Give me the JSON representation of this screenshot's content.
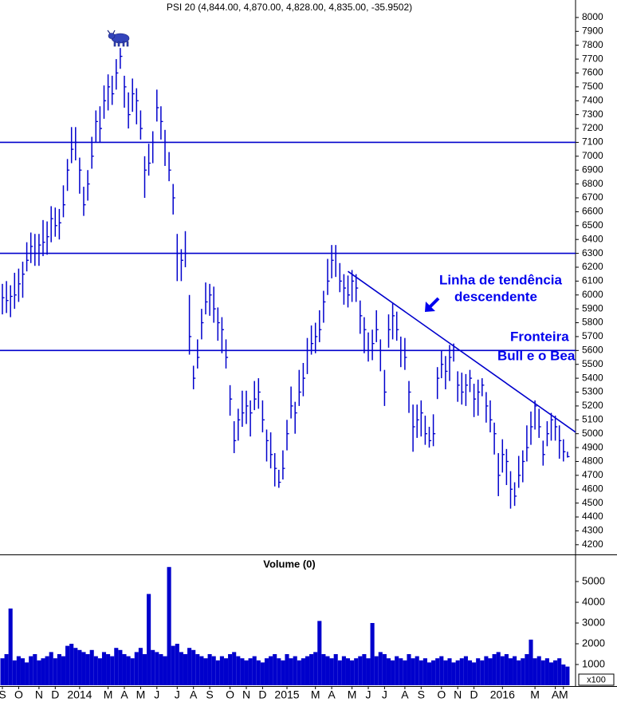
{
  "chart_data": [
    {
      "type": "hlc",
      "title": "PSI 20 (4,844.00, 4,870.00, 4,828.00, 4,835.00, -35.9502)",
      "color": "#0000cc",
      "ylim": [
        4130,
        8126
      ],
      "yticks": [
        4200,
        4300,
        4400,
        4500,
        4600,
        4700,
        4800,
        4900,
        5000,
        5100,
        5200,
        5300,
        5400,
        5500,
        5600,
        5700,
        5800,
        5900,
        6000,
        6100,
        6200,
        6300,
        6400,
        6500,
        6600,
        6700,
        6800,
        6900,
        7000,
        7100,
        7200,
        7300,
        7400,
        7500,
        7600,
        7700,
        7800,
        7900,
        8000
      ],
      "high": [
        6080,
        6100,
        6070,
        6160,
        6190,
        6240,
        6380,
        6450,
        6440,
        6440,
        6540,
        6530,
        6640,
        6630,
        6620,
        6790,
        6980,
        7210,
        7210,
        6990,
        6780,
        6900,
        7140,
        7330,
        7360,
        7510,
        7590,
        7580,
        7700,
        7780,
        7580,
        7460,
        7560,
        7490,
        7330,
        7000,
        7090,
        7180,
        7480,
        7360,
        7190,
        7030,
        6800,
        6440,
        6330,
        6460,
        6000,
        5490,
        5680,
        5900,
        6090,
        6080,
        6060,
        5910,
        5840,
        5680,
        5350,
        5090,
        5180,
        5310,
        5310,
        5240,
        5380,
        5400,
        5240,
        5030,
        5010,
        4860,
        4740,
        4880,
        5100,
        5340,
        5230,
        5460,
        5510,
        5690,
        5780,
        5800,
        5890,
        6030,
        6260,
        6360,
        6360,
        6230,
        6150,
        6140,
        6180,
        6150,
        5960,
        5840,
        5730,
        5750,
        5890,
        5680,
        5460,
        5860,
        5940,
        5880,
        5700,
        5690,
        5380,
        5210,
        5210,
        5240,
        5130,
        5050,
        5140,
        5480,
        5600,
        5560,
        5640,
        5650,
        5450,
        5440,
        5430,
        5460,
        5360,
        5390,
        5400,
        5300,
        5240,
        5080,
        4860,
        4960,
        4890,
        4730,
        4650,
        4840,
        4880,
        5060,
        5160,
        5240,
        5180,
        4950,
        5090,
        5150,
        5130,
        5060,
        4960,
        4870
      ],
      "low": [
        5860,
        5870,
        5840,
        5900,
        5950,
        5980,
        6170,
        6230,
        6210,
        6210,
        6280,
        6290,
        6380,
        6420,
        6400,
        6560,
        6750,
        6950,
        6970,
        6730,
        6570,
        6680,
        6910,
        7100,
        7100,
        7270,
        7330,
        7370,
        7480,
        7630,
        7350,
        7200,
        7320,
        7230,
        7120,
        6700,
        6860,
        6950,
        7250,
        7120,
        6930,
        6820,
        6580,
        6100,
        6100,
        6200,
        5570,
        5320,
        5470,
        5680,
        5860,
        5850,
        5800,
        5670,
        5580,
        5470,
        5130,
        4860,
        4950,
        5050,
        5070,
        4980,
        5170,
        5180,
        5010,
        4800,
        4750,
        4620,
        4610,
        4670,
        4880,
        5110,
        5000,
        5200,
        5270,
        5430,
        5570,
        5580,
        5660,
        5800,
        6000,
        6120,
        6130,
        6020,
        5930,
        5910,
        5950,
        5950,
        5720,
        5580,
        5520,
        5530,
        5660,
        5450,
        5200,
        5620,
        5680,
        5670,
        5480,
        5460,
        5150,
        4870,
        4970,
        4980,
        4920,
        4900,
        4910,
        5250,
        5400,
        5320,
        5380,
        5520,
        5230,
        5210,
        5200,
        5300,
        5120,
        5130,
        5270,
        5080,
        5010,
        4850,
        4550,
        4720,
        4630,
        4460,
        4480,
        4610,
        4650,
        4800,
        4920,
        5030,
        4970,
        4770,
        4910,
        4950,
        4950,
        4820,
        4800,
        4828
      ],
      "close": [
        5980,
        5960,
        5990,
        6000,
        6080,
        6150,
        6250,
        6350,
        6300,
        6360,
        6380,
        6420,
        6550,
        6500,
        6520,
        6650,
        6900,
        7050,
        7100,
        6900,
        6650,
        6800,
        7000,
        7250,
        7200,
        7400,
        7500,
        7450,
        7600,
        7720,
        7500,
        7300,
        7450,
        7400,
        7200,
        6900,
        6950,
        7100,
        7350,
        7250,
        7100,
        6900,
        6700,
        6300,
        6250,
        6300,
        5700,
        5400,
        5550,
        5800,
        5950,
        6000,
        5900,
        5800,
        5750,
        5550,
        5250,
        4950,
        5100,
        5150,
        5200,
        5150,
        5250,
        5300,
        5100,
        4950,
        4850,
        4750,
        4650,
        4750,
        5000,
        5200,
        5150,
        5300,
        5400,
        5600,
        5650,
        5700,
        5750,
        5950,
        6100,
        6250,
        6300,
        6100,
        6050,
        6000,
        6100,
        6050,
        5850,
        5750,
        5600,
        5650,
        5750,
        5600,
        5300,
        5750,
        5850,
        5750,
        5600,
        5550,
        5300,
        5050,
        5100,
        5150,
        5000,
        4950,
        5000,
        5400,
        5500,
        5450,
        5550,
        5600,
        5350,
        5300,
        5350,
        5400,
        5250,
        5300,
        5350,
        5200,
        5100,
        5000,
        4700,
        4850,
        4800,
        4600,
        4550,
        4700,
        4800,
        4900,
        5050,
        5200,
        5050,
        4850,
        5000,
        5100,
        5050,
        4950,
        4870,
        4835
      ],
      "hlines": [
        7100,
        6300,
        5600
      ],
      "trendline": {
        "x": [
          85,
          142
        ],
        "values": [
          6170,
          4990
        ]
      },
      "annotations": [
        "Linha de tendência",
        "descendente",
        "Fronteira",
        "Bull e o Bea"
      ]
    },
    {
      "type": "bar",
      "title": "Volume (0)",
      "y_unit": "x100",
      "color": "#0000cc",
      "ylim": [
        0,
        6230
      ],
      "yticks": [
        1000,
        2000,
        3000,
        4000,
        5000
      ],
      "categories": [
        "S",
        null,
        null,
        null,
        "O",
        null,
        null,
        null,
        null,
        "N",
        null,
        null,
        null,
        "D",
        null,
        null,
        null,
        null,
        null,
        "2014",
        null,
        null,
        null,
        null,
        null,
        null,
        "M",
        null,
        null,
        null,
        "A",
        null,
        null,
        null,
        "M",
        null,
        null,
        null,
        "J",
        null,
        null,
        null,
        null,
        "J",
        null,
        null,
        null,
        "A",
        null,
        null,
        null,
        "S",
        null,
        null,
        null,
        null,
        "O",
        null,
        null,
        null,
        "N",
        null,
        null,
        null,
        "D",
        null,
        null,
        null,
        null,
        null,
        "2015",
        null,
        null,
        null,
        null,
        null,
        null,
        "M",
        null,
        null,
        null,
        "A",
        null,
        null,
        null,
        null,
        "M",
        null,
        null,
        null,
        "J",
        null,
        null,
        null,
        "J",
        null,
        null,
        null,
        null,
        "A",
        null,
        null,
        null,
        "S",
        null,
        null,
        null,
        null,
        "O",
        null,
        null,
        null,
        "N",
        null,
        null,
        null,
        "D",
        null,
        null,
        null,
        null,
        null,
        null,
        "2016",
        null,
        null,
        null,
        null,
        null,
        null,
        null,
        "M",
        null,
        null,
        null,
        null,
        "A",
        null,
        "M",
        null
      ],
      "values": [
        1300,
        1500,
        3700,
        1200,
        1400,
        1300,
        1100,
        1400,
        1500,
        1200,
        1300,
        1400,
        1600,
        1300,
        1500,
        1400,
        1900,
        2000,
        1800,
        1700,
        1600,
        1500,
        1700,
        1400,
        1300,
        1600,
        1500,
        1400,
        1800,
        1700,
        1500,
        1400,
        1300,
        1600,
        1800,
        1500,
        4400,
        1700,
        1600,
        1500,
        1400,
        5700,
        1900,
        2000,
        1600,
        1500,
        1800,
        1700,
        1500,
        1400,
        1300,
        1500,
        1400,
        1200,
        1400,
        1300,
        1500,
        1600,
        1400,
        1300,
        1200,
        1300,
        1400,
        1200,
        1100,
        1300,
        1400,
        1500,
        1300,
        1200,
        1500,
        1300,
        1400,
        1200,
        1300,
        1400,
        1500,
        1600,
        3100,
        1500,
        1400,
        1300,
        1500,
        1200,
        1400,
        1300,
        1200,
        1300,
        1400,
        1500,
        1300,
        3000,
        1400,
        1600,
        1500,
        1300,
        1200,
        1400,
        1300,
        1200,
        1500,
        1300,
        1400,
        1200,
        1300,
        1100,
        1200,
        1300,
        1400,
        1200,
        1300,
        1100,
        1200,
        1300,
        1400,
        1200,
        1100,
        1300,
        1200,
        1400,
        1300,
        1500,
        1600,
        1400,
        1500,
        1300,
        1400,
        1200,
        1300,
        1500,
        2200,
        1300,
        1400,
        1200,
        1300,
        1100,
        1200,
        1300,
        1000,
        900
      ]
    }
  ]
}
